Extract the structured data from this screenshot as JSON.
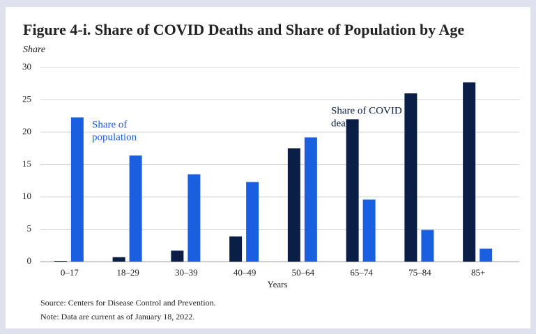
{
  "chart_data": {
    "type": "bar",
    "title": "Figure 4-i. Share of COVID Deaths and Share of Population by Age",
    "y_label": "Share",
    "x_label": "Years",
    "categories": [
      "0–17",
      "18–29",
      "30–39",
      "40–49",
      "50–64",
      "65–74",
      "75–84",
      "85+"
    ],
    "series": [
      {
        "name": "Share of COVID deaths",
        "color": "#0b1e45",
        "values": [
          0.1,
          0.7,
          1.7,
          3.9,
          17.5,
          22,
          26,
          27.7
        ]
      },
      {
        "name": "Share of population",
        "color": "#1a5fe0",
        "values": [
          22.3,
          16.4,
          13.5,
          12.3,
          19.2,
          9.6,
          4.9,
          2.0
        ]
      }
    ],
    "annotations": [
      {
        "lines": [
          "Share of",
          "population"
        ],
        "color": "#1a5fe0"
      },
      {
        "lines": [
          "Share of COVID",
          "deaths"
        ],
        "color": "#0b1e45"
      }
    ],
    "ylim": [
      0,
      30
    ],
    "yticks": [
      0,
      5,
      10,
      15,
      20,
      25,
      30
    ],
    "grid": true,
    "notes": [
      "Source: Centers for Disease Control and Prevention.",
      "Note: Data are current as of January 18, 2022."
    ]
  }
}
